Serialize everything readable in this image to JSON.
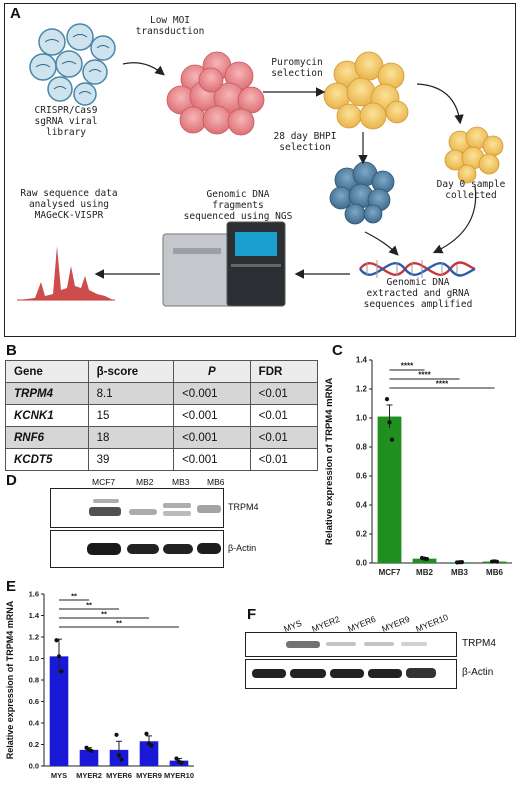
{
  "panel_a": {
    "label": "A",
    "library_label": "CRISPR/Cas9\nsgRNA viral\nlibrary",
    "transduction_label": "Low MOI\ntransduction",
    "puromycin_label": "Puromycin\nselection",
    "bhpi_label": "28 day BHPI\nselection",
    "day0_label": "Day 0 sample\ncollected",
    "genomic_dna_label": "Genomic DNA\nextracted and gRNA\nsequences amplified",
    "ngs_label": "Genomic DNA\nfragments\nsequenced using NGS",
    "raw_label": "Raw sequence data\nanalysed using\nMAGeCK-VISPR"
  },
  "panel_b": {
    "label": "B",
    "headers": [
      "Gene",
      "β-score",
      "P",
      "FDR"
    ],
    "rows": [
      [
        "TRPM4",
        "8.1",
        "<0.001",
        "<0.01"
      ],
      [
        "KCNK1",
        "15",
        "<0.001",
        "<0.01"
      ],
      [
        "RNF6",
        "18",
        "<0.001",
        "<0.01"
      ],
      [
        "KCDT5",
        "39",
        "<0.001",
        "<0.01"
      ]
    ]
  },
  "panel_d": {
    "label": "D",
    "lanes": [
      "MCF7",
      "MB2",
      "MB3",
      "MB6"
    ],
    "band_top": "TRPM4",
    "band_bottom": "β-Actin"
  },
  "panel_f": {
    "label": "F",
    "lanes": [
      "MYS",
      "MYER2",
      "MYER6",
      "MYER9",
      "MYER10"
    ],
    "band_top": "TRPM4",
    "band_bottom": "β-Actin"
  },
  "chart_data": [
    {
      "panel": "C",
      "type": "bar",
      "ylabel": "Relative expression of TRPM4 mRNA",
      "ylim": [
        0,
        1.4
      ],
      "yticks": [
        "0.0",
        "0.2",
        "0.4",
        "0.6",
        "0.8",
        "1.0",
        "1.2",
        "1.4"
      ],
      "categories": [
        "MCF7",
        "MB2",
        "MB3",
        "MB6"
      ],
      "values": [
        1.01,
        0.03,
        0.005,
        0.01
      ],
      "errors": [
        0.08,
        0.005,
        0.002,
        0.003
      ],
      "points": [
        [
          1.13,
          0.97,
          0.85
        ],
        [
          0.035,
          0.03,
          0.028
        ],
        [
          0.004,
          0.005,
          0.006
        ],
        [
          0.01,
          0.011,
          0.009
        ]
      ],
      "color": "#1f8f1f",
      "significance": [
        {
          "from": 0,
          "to": 1,
          "label": "****"
        },
        {
          "from": 0,
          "to": 2,
          "label": "****"
        },
        {
          "from": 0,
          "to": 3,
          "label": "****"
        }
      ]
    },
    {
      "panel": "E",
      "type": "bar",
      "ylabel": "Relative expression of TRPM4 mRNA",
      "ylim": [
        0,
        1.6
      ],
      "yticks": [
        "0.0",
        "0.2",
        "0.4",
        "0.6",
        "0.8",
        "1.0",
        "1.2",
        "1.4",
        "1.6"
      ],
      "categories": [
        "MYS",
        "MYER2",
        "MYER6",
        "MYER9",
        "MYER10"
      ],
      "values": [
        1.02,
        0.15,
        0.15,
        0.23,
        0.05
      ],
      "errors": [
        0.16,
        0.02,
        0.08,
        0.05,
        0.02
      ],
      "points": [
        [
          1.17,
          1.02,
          0.88
        ],
        [
          0.17,
          0.15,
          0.14
        ],
        [
          0.29,
          0.1,
          0.06
        ],
        [
          0.3,
          0.21,
          0.19
        ],
        [
          0.07,
          0.04,
          0.03
        ]
      ],
      "color": "#1a1ad6",
      "significance": [
        {
          "from": 0,
          "to": 1,
          "label": "**"
        },
        {
          "from": 0,
          "to": 2,
          "label": "**"
        },
        {
          "from": 0,
          "to": 3,
          "label": "**"
        },
        {
          "from": 0,
          "to": 4,
          "label": "**"
        }
      ]
    }
  ],
  "colors": {
    "green_bar": "#1f8f1f",
    "blue_bar": "#1a1ad6",
    "cell_pink": "#e8858a",
    "cell_yellow": "#f2c35a",
    "cell_blue": "#4f7fa0",
    "peak_red": "#c83a3a",
    "dna_red": "#c8363a",
    "dna_blue": "#2a5aa8"
  }
}
